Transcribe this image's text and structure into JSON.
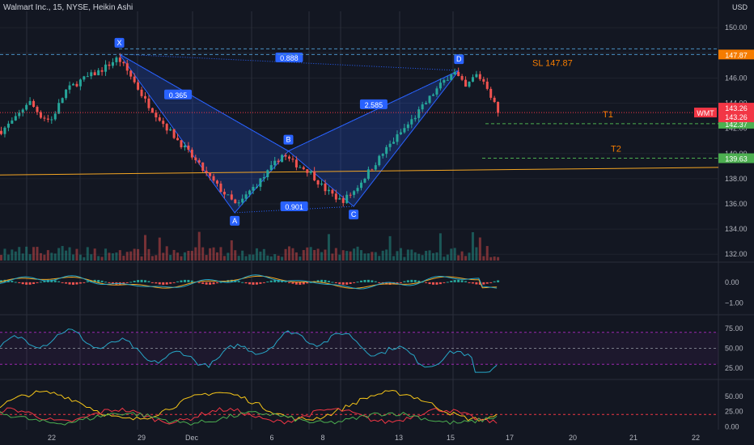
{
  "header": {
    "symbol_title": "Walmart Inc., 15, NYSE, Heikin Ashi",
    "currency": "USD"
  },
  "colors": {
    "background": "#131722",
    "bull": "#26a69a",
    "bear": "#ef5350",
    "pattern_fill": "#2962ff",
    "pattern_label_bg": "#2962ff",
    "sl_color": "#f57c00",
    "target_color": "#4caf50",
    "trendline": "#f5a623",
    "wmt_badge": "#f23645",
    "rsi_line": "#26a7c7",
    "rsi_band": "#9c27b0",
    "stoch_yellow": "#f5c518",
    "stoch_red": "#f23645",
    "stoch_green": "#4caf50"
  },
  "chart_data": [
    {
      "type": "line",
      "name": "Walmart Inc., 15, NYSE, Heikin Ashi (price pane)",
      "x_tick_labels": [
        "22",
        "29",
        "Dec",
        "6",
        "8",
        "13",
        "15",
        "17",
        "20",
        "21",
        "22"
      ],
      "y_ticks": [
        132.0,
        134.0,
        136.0,
        138.0,
        140.0,
        142.0,
        144.0,
        146.0,
        148.0,
        150.0
      ],
      "y_tick_labels": [
        "132.00",
        "134.00",
        "136.00",
        "138.00",
        "140.00",
        "142.00",
        "144.00",
        "146.00",
        "148.00",
        "150.00"
      ],
      "ylim": [
        131.5,
        151.3
      ],
      "price_path": [
        {
          "t": 0,
          "p": 141.8
        },
        {
          "t": 0.03,
          "p": 142.8
        },
        {
          "t": 0.055,
          "p": 144.2
        },
        {
          "t": 0.08,
          "p": 143.0
        },
        {
          "t": 0.1,
          "p": 142.6
        },
        {
          "t": 0.13,
          "p": 145.0
        },
        {
          "t": 0.16,
          "p": 145.8
        },
        {
          "t": 0.2,
          "p": 146.6
        },
        {
          "t": 0.235,
          "p": 147.6
        },
        {
          "t": 0.26,
          "p": 146.2
        },
        {
          "t": 0.29,
          "p": 144.2
        },
        {
          "t": 0.33,
          "p": 142.2
        },
        {
          "t": 0.37,
          "p": 140.4
        },
        {
          "t": 0.41,
          "p": 138.5
        },
        {
          "t": 0.44,
          "p": 137.2
        },
        {
          "t": 0.475,
          "p": 135.8
        },
        {
          "t": 0.5,
          "p": 137.0
        },
        {
          "t": 0.53,
          "p": 138.2
        },
        {
          "t": 0.565,
          "p": 139.9
        },
        {
          "t": 0.59,
          "p": 139.2
        },
        {
          "t": 0.62,
          "p": 138.6
        },
        {
          "t": 0.65,
          "p": 137.2
        },
        {
          "t": 0.685,
          "p": 136.2
        },
        {
          "t": 0.71,
          "p": 137.0
        },
        {
          "t": 0.74,
          "p": 138.6
        },
        {
          "t": 0.78,
          "p": 140.6
        },
        {
          "t": 0.83,
          "p": 142.8
        },
        {
          "t": 0.87,
          "p": 144.8
        },
        {
          "t": 0.91,
          "p": 146.6
        },
        {
          "t": 0.935,
          "p": 145.2
        },
        {
          "t": 0.955,
          "p": 146.3
        },
        {
          "t": 0.975,
          "p": 145.6
        },
        {
          "t": 1.0,
          "p": 143.26
        }
      ],
      "harmonic_points": [
        {
          "label": "X",
          "price": 147.9
        },
        {
          "label": "A",
          "price": 135.3
        },
        {
          "label": "B",
          "price": 140.2
        },
        {
          "label": "C",
          "price": 135.8
        },
        {
          "label": "D",
          "price": 146.6
        }
      ],
      "ratios": [
        "0.888",
        "0.365",
        "2.585",
        "0.901"
      ],
      "levels": [
        {
          "label": "SL 147.87",
          "price": 147.87,
          "badge": "147.87"
        },
        {
          "label": "T1",
          "price": 142.37,
          "badge": "142.37"
        },
        {
          "label": "T2",
          "price": 139.63,
          "badge": "139.63"
        }
      ],
      "last_price_badges": [
        "143.26",
        "143.26"
      ],
      "ticker_badge": "WMT",
      "trendline": {
        "start_price": 138.3,
        "end_price": 138.9
      }
    },
    {
      "type": "bar",
      "name": "MACD pane",
      "y_tick_labels": [
        "0.00",
        "−1.00"
      ],
      "ylim": [
        -1.5,
        0.9
      ]
    },
    {
      "type": "line",
      "name": "RSI pane",
      "y_tick_labels": [
        "75.00",
        "50.00",
        "25.00"
      ],
      "ylim": [
        13,
        90
      ],
      "bands": [
        70,
        50,
        30
      ]
    },
    {
      "type": "line",
      "name": "Stochastic pane",
      "y_tick_labels": [
        "50.00",
        "25.00",
        "0.00"
      ],
      "ylim": [
        -5,
        75
      ]
    }
  ]
}
